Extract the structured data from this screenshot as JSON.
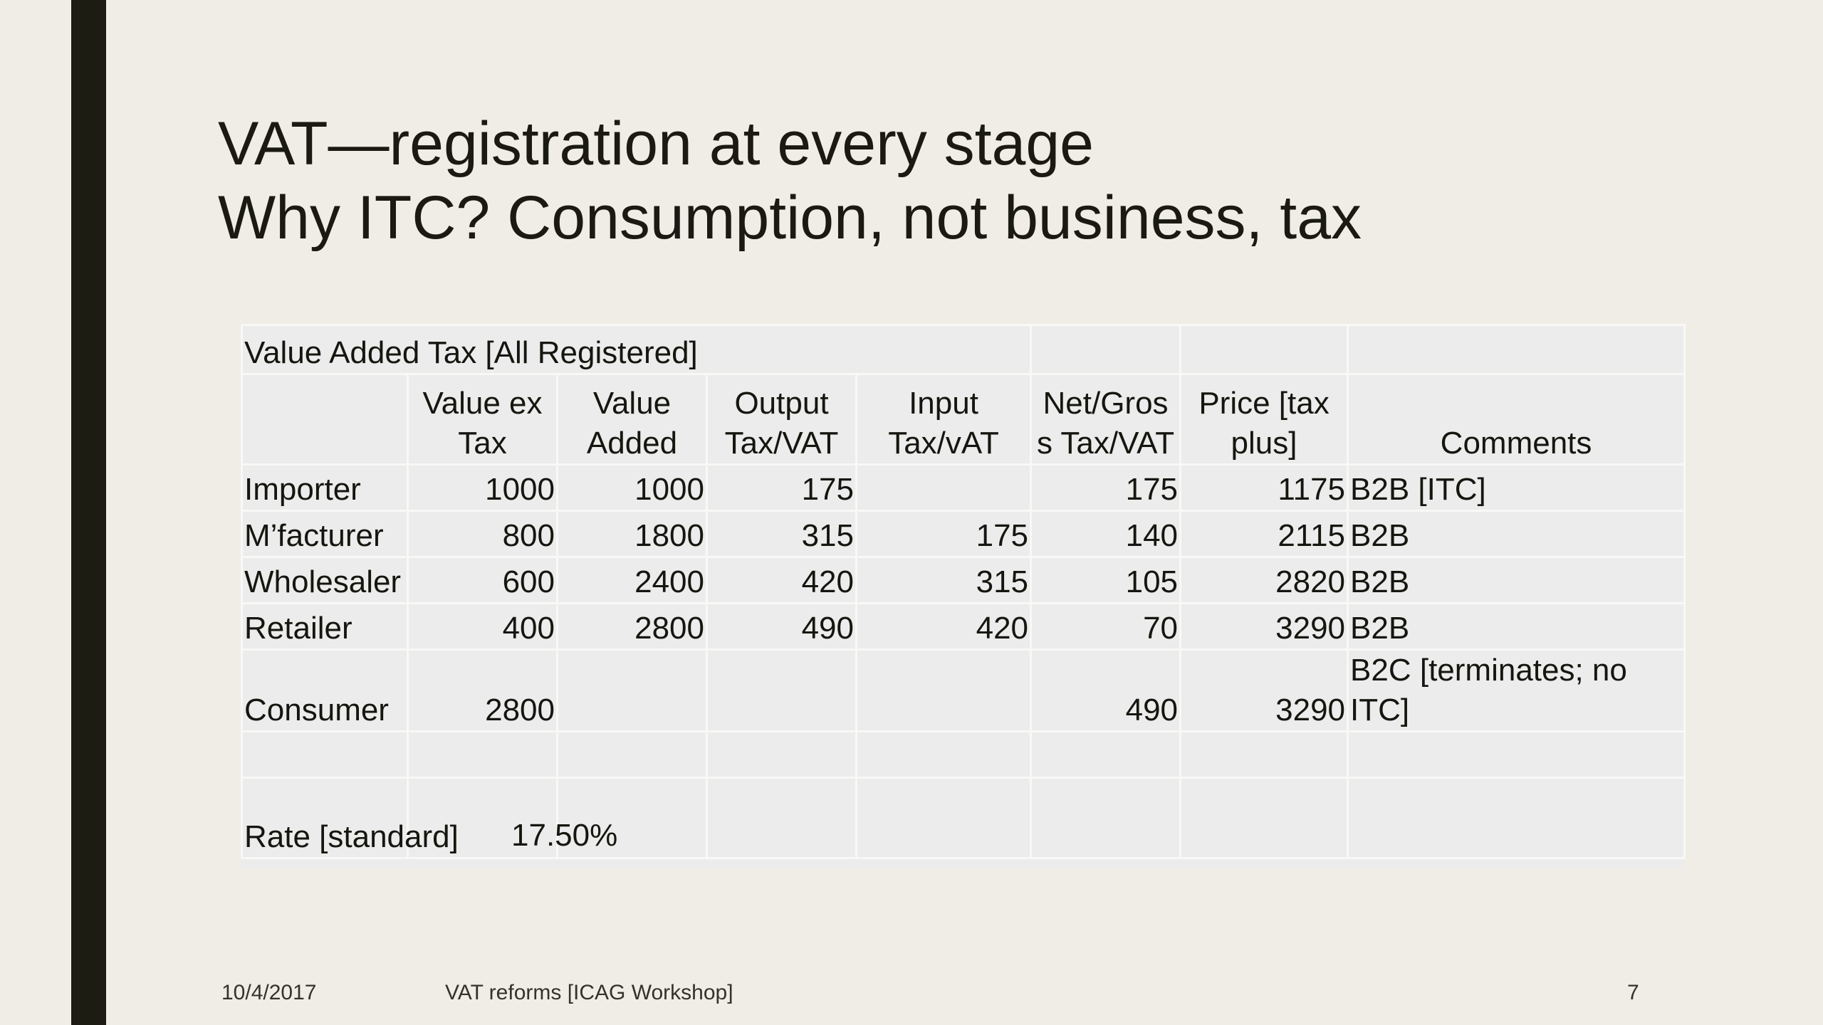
{
  "slide": {
    "title_line1": "VAT—registration at every stage",
    "title_line2": "Why ITC? Consumption, not business, tax"
  },
  "table": {
    "caption": "Value Added Tax [All Registered]",
    "headers": {
      "value_ex_tax": "Value ex Tax",
      "value_added": "Value Added",
      "output_tax": "Output Tax/VAT",
      "input_tax": "Input Tax/vAT",
      "net_gross": "Net/Gros s Tax/VAT",
      "price": "Price [tax plus]",
      "comments": "Comments"
    },
    "rows": [
      {
        "name": "Importer",
        "value_ex_tax": "1000",
        "value_added": "1000",
        "output_tax": "175",
        "input_tax": "",
        "net_gross": "175",
        "price": "1175",
        "comments": "B2B [ITC]"
      },
      {
        "name": "M’facturer",
        "value_ex_tax": "800",
        "value_added": "1800",
        "output_tax": "315",
        "input_tax": "175",
        "net_gross": "140",
        "price": "2115",
        "comments": "B2B"
      },
      {
        "name": "Wholesaler",
        "value_ex_tax": "600",
        "value_added": "2400",
        "output_tax": "420",
        "input_tax": "315",
        "net_gross": "105",
        "price": "2820",
        "comments": "B2B"
      },
      {
        "name": "Retailer",
        "value_ex_tax": "400",
        "value_added": "2800",
        "output_tax": "490",
        "input_tax": "420",
        "net_gross": "70",
        "price": "3290",
        "comments": "B2B"
      },
      {
        "name": "Consumer",
        "value_ex_tax": "2800",
        "value_added": "",
        "output_tax": "",
        "input_tax": "",
        "net_gross": "490",
        "price": "3290",
        "comments": "B2C [terminates; no ITC]"
      }
    ],
    "rate_label": "Rate [standard]",
    "rate_value": "17.50%"
  },
  "footer": {
    "date": "10/4/2017",
    "center": "VAT reforms [ICAG Workshop]",
    "page": "7"
  }
}
